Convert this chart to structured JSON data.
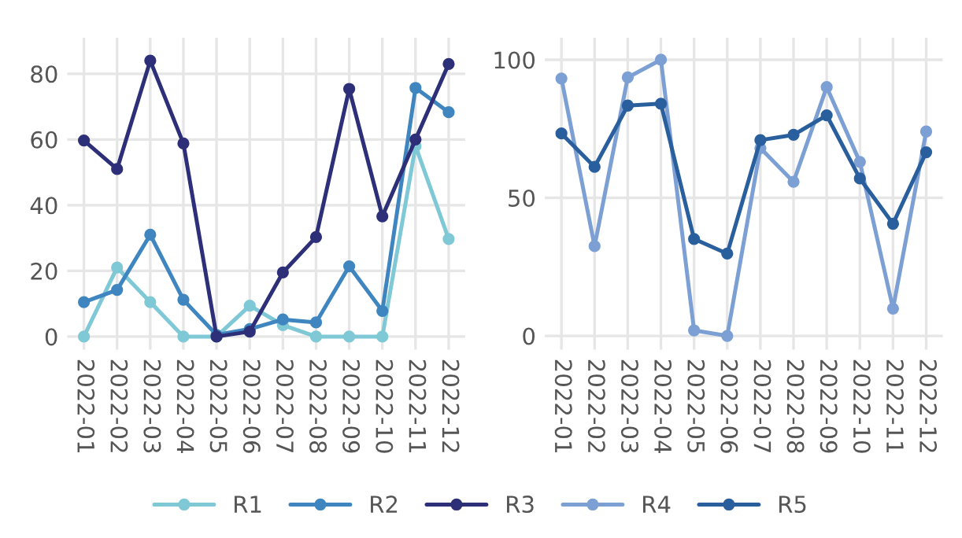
{
  "chart_data": [
    {
      "type": "line",
      "categories": [
        "2022-01",
        "2022-02",
        "2022-03",
        "2022-04",
        "2022-05",
        "2022-06",
        "2022-07",
        "2022-08",
        "2022-09",
        "2022-10",
        "2022-11",
        "2022-12"
      ],
      "series": [
        {
          "name": "R1",
          "color": "#7fc8d6",
          "values": [
            0,
            21,
            10.5,
            0,
            0,
            9.4,
            3.5,
            0,
            0,
            0,
            58,
            29.7
          ]
        },
        {
          "name": "R2",
          "color": "#3f86c0",
          "values": [
            10.5,
            14.2,
            31,
            11.2,
            0.5,
            2.3,
            5.2,
            4.3,
            21.4,
            7.8,
            75.7,
            68.3
          ]
        },
        {
          "name": "R3",
          "color": "#2d2f78",
          "values": [
            59.7,
            51,
            84,
            58.8,
            0,
            1.5,
            19.5,
            30.3,
            75.4,
            36.6,
            60,
            83
          ]
        }
      ],
      "ylim": [
        -4,
        91
      ],
      "yticks": [
        0,
        20,
        40,
        60,
        80
      ],
      "grid": true,
      "marker": "circle",
      "line_style": "solid",
      "legend": "bottom"
    },
    {
      "type": "line",
      "categories": [
        "2022-01",
        "2022-02",
        "2022-03",
        "2022-04",
        "2022-05",
        "2022-06",
        "2022-07",
        "2022-08",
        "2022-09",
        "2022-10",
        "2022-11",
        "2022-12"
      ],
      "series": [
        {
          "name": "R4",
          "color": "#7c9fd4",
          "values": [
            93.2,
            32.5,
            93.6,
            100,
            2,
            0,
            68,
            55.8,
            90.1,
            63,
            9.9,
            74
          ]
        },
        {
          "name": "R5",
          "color": "#2a5f9e",
          "values": [
            73.3,
            61.2,
            83.4,
            84.1,
            35.1,
            29.8,
            70.9,
            72.8,
            79.9,
            57,
            40.6,
            66.5
          ]
        }
      ],
      "ylim": [
        -5,
        108
      ],
      "yticks": [
        0,
        50,
        100
      ],
      "grid": true,
      "marker": "circle",
      "line_style": "solid",
      "legend": "bottom"
    }
  ]
}
